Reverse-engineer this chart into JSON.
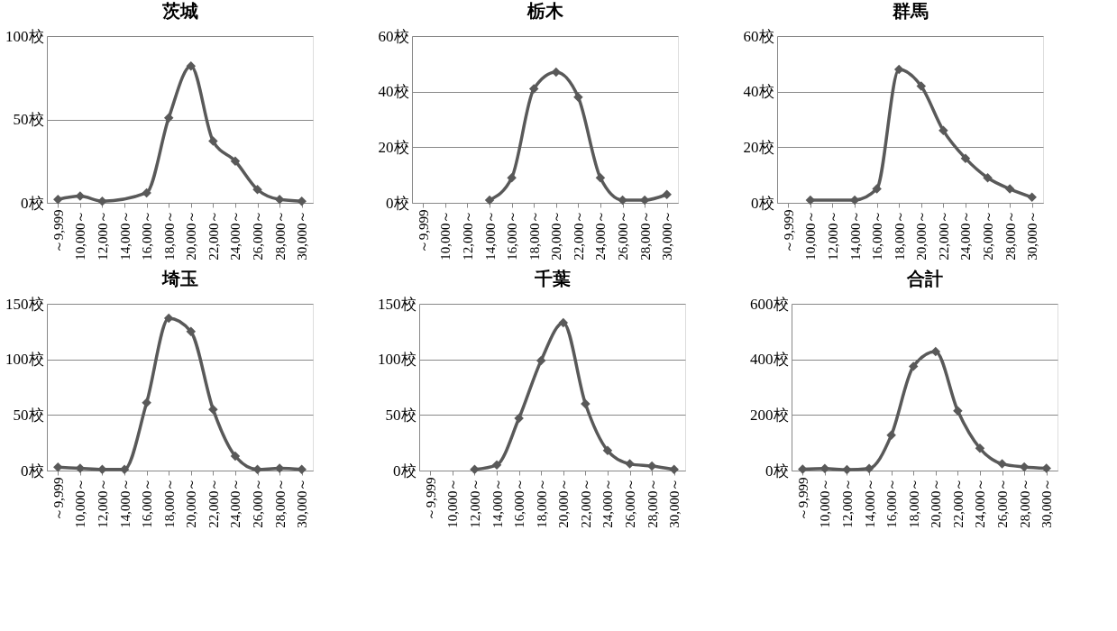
{
  "chart_data": [
    {
      "type": "line",
      "title": "茨城",
      "categories": [
        "～9,999",
        "10,000～",
        "12,000～",
        "14,000～",
        "16,000～",
        "18,000～",
        "20,000～",
        "22,000～",
        "24,000～",
        "26,000～",
        "28,000～",
        "30,000～"
      ],
      "series": [
        {
          "color": "#595959",
          "values": [
            2,
            4,
            1,
            null,
            6,
            51,
            82,
            37,
            25,
            8,
            2,
            1
          ]
        }
      ],
      "ylim": [
        0,
        100
      ],
      "yticks": [
        {
          "value": 0,
          "label": "0校"
        },
        {
          "value": 50,
          "label": "50校"
        },
        {
          "value": 100,
          "label": "100校"
        }
      ],
      "grid": "y",
      "marker": "diamond"
    },
    {
      "type": "line",
      "title": "栃木",
      "categories": [
        "～9,999",
        "10,000～",
        "12,000～",
        "14,000～",
        "16,000～",
        "18,000～",
        "20,000～",
        "22,000～",
        "24,000～",
        "26,000～",
        "28,000～",
        "30,000～"
      ],
      "series": [
        {
          "color": "#595959",
          "values": [
            null,
            null,
            null,
            1,
            9,
            41,
            47,
            38,
            9,
            1,
            1,
            3
          ]
        }
      ],
      "ylim": [
        0,
        60
      ],
      "yticks": [
        {
          "value": 0,
          "label": "0校"
        },
        {
          "value": 20,
          "label": "20校"
        },
        {
          "value": 40,
          "label": "40校"
        },
        {
          "value": 60,
          "label": "60校"
        }
      ],
      "grid": "y",
      "marker": "diamond"
    },
    {
      "type": "line",
      "title": "群馬",
      "categories": [
        "～9,999",
        "10,000～",
        "12,000～",
        "14,000～",
        "16,000～",
        "18,000～",
        "20,000～",
        "22,000～",
        "24,000～",
        "26,000～",
        "28,000～",
        "30,000～"
      ],
      "series": [
        {
          "color": "#595959",
          "values": [
            null,
            1,
            null,
            1,
            5,
            48,
            42,
            26,
            16,
            9,
            5,
            2
          ]
        }
      ],
      "ylim": [
        0,
        60
      ],
      "yticks": [
        {
          "value": 0,
          "label": "0校"
        },
        {
          "value": 20,
          "label": "20校"
        },
        {
          "value": 40,
          "label": "40校"
        },
        {
          "value": 60,
          "label": "60校"
        }
      ],
      "grid": "y",
      "marker": "diamond"
    },
    {
      "type": "line",
      "title": "埼玉",
      "categories": [
        "～9,999",
        "10,000～",
        "12,000～",
        "14,000～",
        "16,000～",
        "18,000～",
        "20,000～",
        "22,000～",
        "24,000～",
        "26,000～",
        "28,000～",
        "30,000～"
      ],
      "series": [
        {
          "color": "#595959",
          "values": [
            3,
            2,
            1,
            1,
            61,
            137,
            125,
            55,
            13,
            1,
            2,
            1
          ]
        }
      ],
      "ylim": [
        0,
        150
      ],
      "yticks": [
        {
          "value": 0,
          "label": "0校"
        },
        {
          "value": 50,
          "label": "50校"
        },
        {
          "value": 100,
          "label": "100校"
        },
        {
          "value": 150,
          "label": "150校"
        }
      ],
      "grid": "y",
      "marker": "diamond"
    },
    {
      "type": "line",
      "title": "千葉",
      "categories": [
        "～9,999",
        "10,000～",
        "12,000～",
        "14,000～",
        "16,000～",
        "18,000～",
        "20,000～",
        "22,000～",
        "24,000～",
        "26,000～",
        "28,000～",
        "30,000～"
      ],
      "series": [
        {
          "color": "#595959",
          "values": [
            null,
            null,
            1,
            5,
            47,
            99,
            133,
            60,
            18,
            6,
            4,
            1
          ]
        }
      ],
      "ylim": [
        0,
        150
      ],
      "yticks": [
        {
          "value": 0,
          "label": "0校"
        },
        {
          "value": 50,
          "label": "50校"
        },
        {
          "value": 100,
          "label": "100校"
        },
        {
          "value": 150,
          "label": "150校"
        }
      ],
      "grid": "y",
      "marker": "diamond"
    },
    {
      "type": "line",
      "title": "合計",
      "categories": [
        "～9,999",
        "10,000～",
        "12,000～",
        "14,000～",
        "16,000～",
        "18,000～",
        "20,000～",
        "22,000～",
        "24,000～",
        "26,000～",
        "28,000～",
        "30,000～"
      ],
      "series": [
        {
          "color": "#595959",
          "values": [
            5,
            7,
            3,
            7,
            127,
            375,
            428,
            215,
            80,
            24,
            13,
            8
          ]
        }
      ],
      "ylim": [
        0,
        600
      ],
      "yticks": [
        {
          "value": 0,
          "label": "0校"
        },
        {
          "value": 200,
          "label": "200校"
        },
        {
          "value": 400,
          "label": "400校"
        },
        {
          "value": 600,
          "label": "600校"
        }
      ],
      "grid": "y",
      "marker": "diamond"
    }
  ]
}
